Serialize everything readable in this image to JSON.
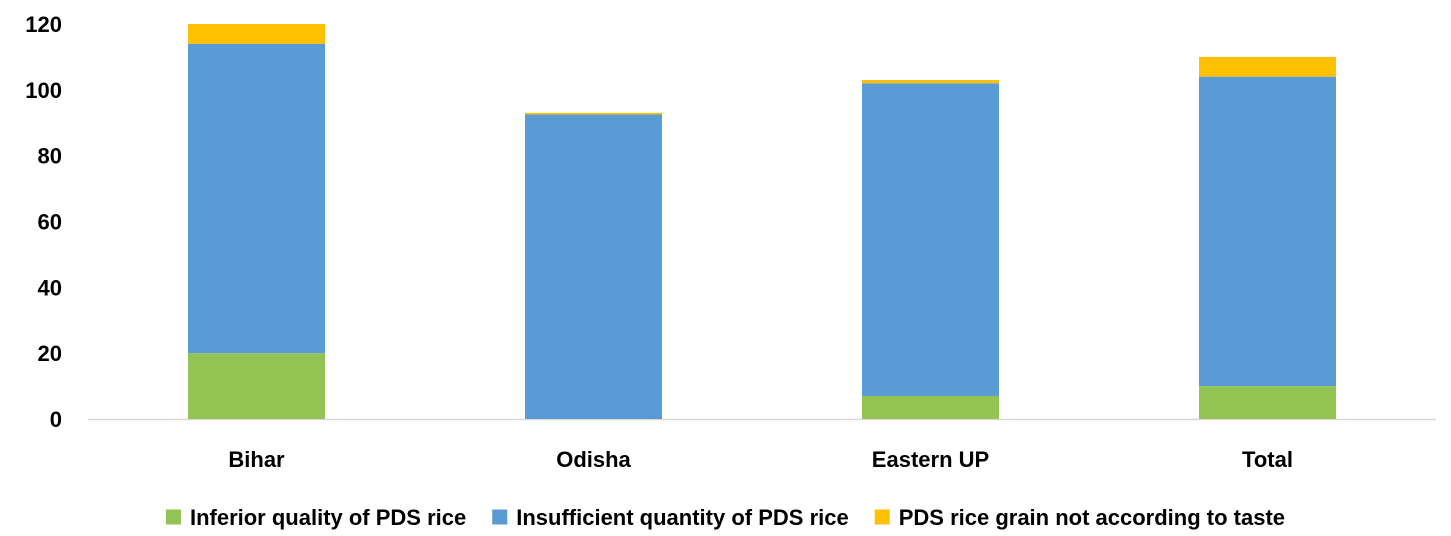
{
  "chart_data": {
    "type": "bar",
    "stacked": true,
    "title": "",
    "xlabel": "",
    "ylabel": "",
    "ylim": [
      0,
      120
    ],
    "yticks": [
      0,
      20,
      40,
      60,
      80,
      100,
      120
    ],
    "grid": false,
    "legend_position": "bottom",
    "categories": [
      "Bihar",
      "Odisha",
      "Eastern UP",
      "Total"
    ],
    "series": [
      {
        "name": "Inferior quality of PDS rice",
        "color": "#92C353",
        "values": [
          20,
          0,
          7,
          10
        ]
      },
      {
        "name": "Insufficient quantity of PDS rice",
        "color": "#5B9BD5",
        "values": [
          94,
          92.5,
          95,
          94
        ]
      },
      {
        "name": "PDS rice grain not according to taste",
        "color": "#FFC000",
        "values": [
          6,
          0.5,
          1,
          6
        ]
      }
    ]
  }
}
